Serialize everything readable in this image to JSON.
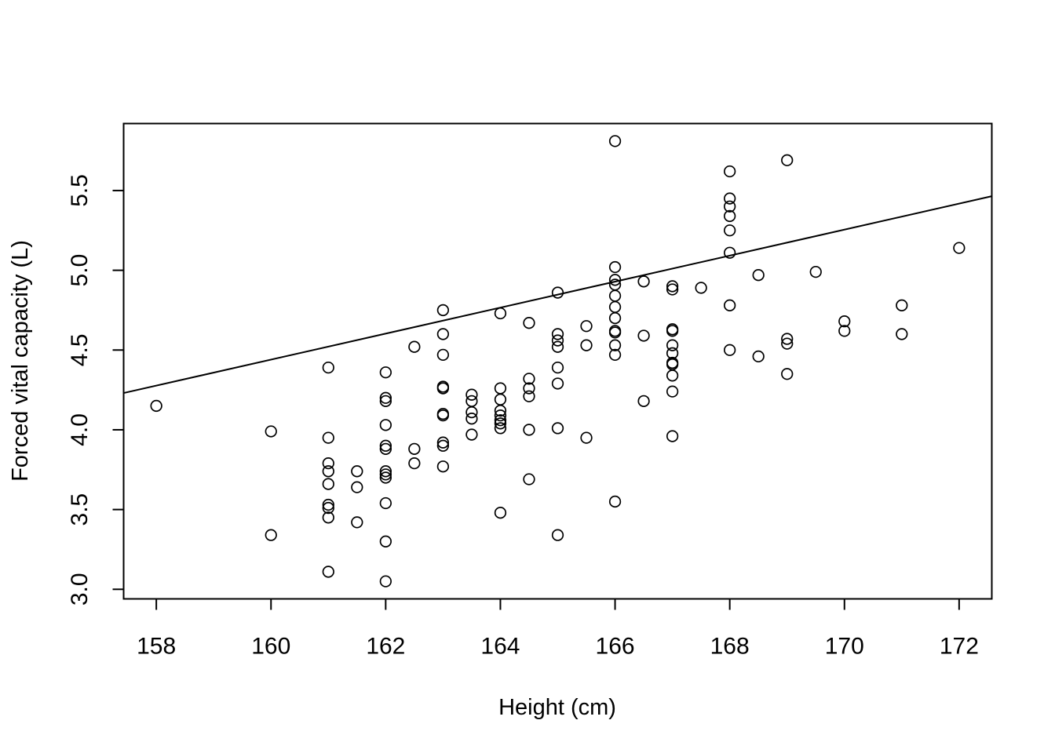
{
  "chart_data": {
    "type": "scatter",
    "title": "",
    "xlabel": "Height (cm)",
    "ylabel": "Forced vital capacity (L)",
    "xlim": [
      157.43,
      172.57
    ],
    "ylim": [
      2.94,
      5.92
    ],
    "xticks": [
      158,
      160,
      162,
      164,
      166,
      168,
      170,
      172
    ],
    "xtick_labels": [
      "158",
      "160",
      "162",
      "164",
      "166",
      "168",
      "170",
      "172"
    ],
    "yticks": [
      3.0,
      3.5,
      4.0,
      4.5,
      5.0,
      5.5
    ],
    "ytick_labels": [
      "3.0",
      "3.5",
      "4.0",
      "4.5",
      "5.0",
      "5.5"
    ],
    "grid": false,
    "marker": "open-circle",
    "regression_line": {
      "intercept": -8.6,
      "slope": 0.0815,
      "x_range": [
        157.43,
        172.57
      ]
    },
    "points": [
      [
        158,
        4.15
      ],
      [
        160,
        3.99
      ],
      [
        160,
        3.34
      ],
      [
        161,
        4.39
      ],
      [
        161,
        3.95
      ],
      [
        161,
        3.79
      ],
      [
        161,
        3.74
      ],
      [
        161,
        3.66
      ],
      [
        161,
        3.53
      ],
      [
        161,
        3.51
      ],
      [
        161,
        3.45
      ],
      [
        161,
        3.11
      ],
      [
        161.5,
        3.74
      ],
      [
        161.5,
        3.64
      ],
      [
        161.5,
        3.42
      ],
      [
        162,
        4.36
      ],
      [
        162,
        4.2
      ],
      [
        162,
        4.18
      ],
      [
        162,
        4.03
      ],
      [
        162,
        3.9
      ],
      [
        162,
        3.88
      ],
      [
        162,
        3.74
      ],
      [
        162,
        3.72
      ],
      [
        162,
        3.7
      ],
      [
        162,
        3.54
      ],
      [
        162,
        3.3
      ],
      [
        162,
        3.05
      ],
      [
        162.5,
        4.52
      ],
      [
        162.5,
        3.88
      ],
      [
        162.5,
        3.79
      ],
      [
        163,
        4.75
      ],
      [
        163,
        4.6
      ],
      [
        163,
        4.47
      ],
      [
        163,
        4.27
      ],
      [
        163,
        4.26
      ],
      [
        163,
        4.1
      ],
      [
        163,
        4.09
      ],
      [
        163,
        3.92
      ],
      [
        163,
        3.9
      ],
      [
        163,
        3.77
      ],
      [
        163.5,
        4.22
      ],
      [
        163.5,
        4.18
      ],
      [
        163.5,
        4.11
      ],
      [
        163.5,
        4.07
      ],
      [
        163.5,
        3.97
      ],
      [
        164,
        4.73
      ],
      [
        164,
        4.26
      ],
      [
        164,
        4.19
      ],
      [
        164,
        4.12
      ],
      [
        164,
        4.09
      ],
      [
        164,
        4.06
      ],
      [
        164,
        4.04
      ],
      [
        164,
        4.01
      ],
      [
        164,
        3.48
      ],
      [
        164.5,
        4.67
      ],
      [
        164.5,
        4.32
      ],
      [
        164.5,
        4.26
      ],
      [
        164.5,
        4.21
      ],
      [
        164.5,
        4.0
      ],
      [
        164.5,
        3.69
      ],
      [
        165,
        4.86
      ],
      [
        165,
        4.6
      ],
      [
        165,
        4.56
      ],
      [
        165,
        4.52
      ],
      [
        165,
        4.39
      ],
      [
        165,
        4.29
      ],
      [
        165,
        4.01
      ],
      [
        165,
        3.34
      ],
      [
        165.5,
        4.65
      ],
      [
        165.5,
        4.53
      ],
      [
        165.5,
        3.95
      ],
      [
        166,
        5.81
      ],
      [
        166,
        5.02
      ],
      [
        166,
        4.94
      ],
      [
        166,
        4.91
      ],
      [
        166,
        4.84
      ],
      [
        166,
        4.77
      ],
      [
        166,
        4.7
      ],
      [
        166,
        4.62
      ],
      [
        166,
        4.61
      ],
      [
        166,
        4.53
      ],
      [
        166,
        4.47
      ],
      [
        166,
        3.55
      ],
      [
        166.5,
        4.93
      ],
      [
        166.5,
        4.59
      ],
      [
        166.5,
        4.18
      ],
      [
        167,
        4.9
      ],
      [
        167,
        4.88
      ],
      [
        167,
        4.63
      ],
      [
        167,
        4.62
      ],
      [
        167,
        4.53
      ],
      [
        167,
        4.48
      ],
      [
        167,
        4.42
      ],
      [
        167,
        4.41
      ],
      [
        167,
        4.34
      ],
      [
        167,
        4.24
      ],
      [
        167,
        3.96
      ],
      [
        167.5,
        4.89
      ],
      [
        168,
        5.62
      ],
      [
        168,
        5.45
      ],
      [
        168,
        5.4
      ],
      [
        168,
        5.34
      ],
      [
        168,
        5.25
      ],
      [
        168,
        5.11
      ],
      [
        168,
        4.78
      ],
      [
        168,
        4.5
      ],
      [
        168.5,
        4.97
      ],
      [
        168.5,
        4.46
      ],
      [
        169,
        5.69
      ],
      [
        169,
        4.57
      ],
      [
        169,
        4.54
      ],
      [
        169,
        4.35
      ],
      [
        169.5,
        4.99
      ],
      [
        170,
        4.68
      ],
      [
        170,
        4.62
      ],
      [
        171,
        4.78
      ],
      [
        171,
        4.6
      ],
      [
        172,
        5.14
      ]
    ]
  }
}
